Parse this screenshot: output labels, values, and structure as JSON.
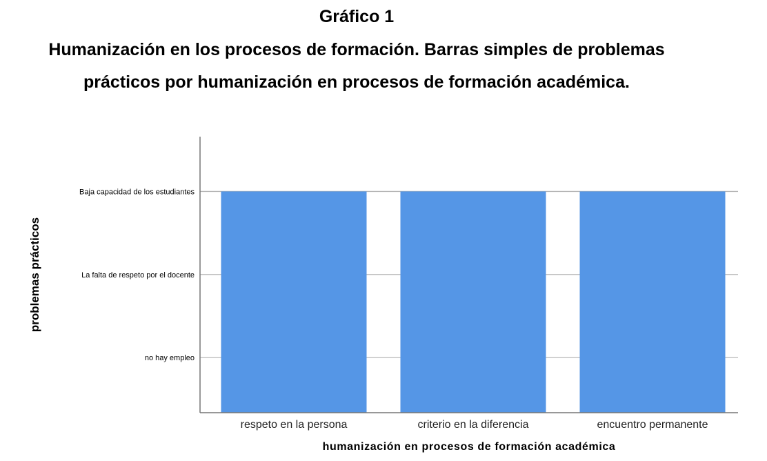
{
  "heading": "Gráfico 1",
  "title_line1": "Humanización en los procesos de formación. Barras simples de problemas",
  "title_line2": "prácticos por humanización en procesos de formación académica.",
  "chart_data": {
    "type": "bar",
    "categories": [
      "respeto en la persona",
      "criterio en la diferencia",
      "encuentro permanente"
    ],
    "values": [
      "Baja capacidad de los estudiantes",
      "Baja capacidad de los estudiantes",
      "Baja capacidad de los estudiantes"
    ],
    "y_categories": [
      "no hay empleo",
      "La falta de respeto por el docente",
      "Baja capacidad de los estudiantes"
    ],
    "xlabel": "humanización en procesos de formación académica",
    "ylabel": "problemas prácticos",
    "grid": true,
    "bar_color": "#5596E6"
  }
}
